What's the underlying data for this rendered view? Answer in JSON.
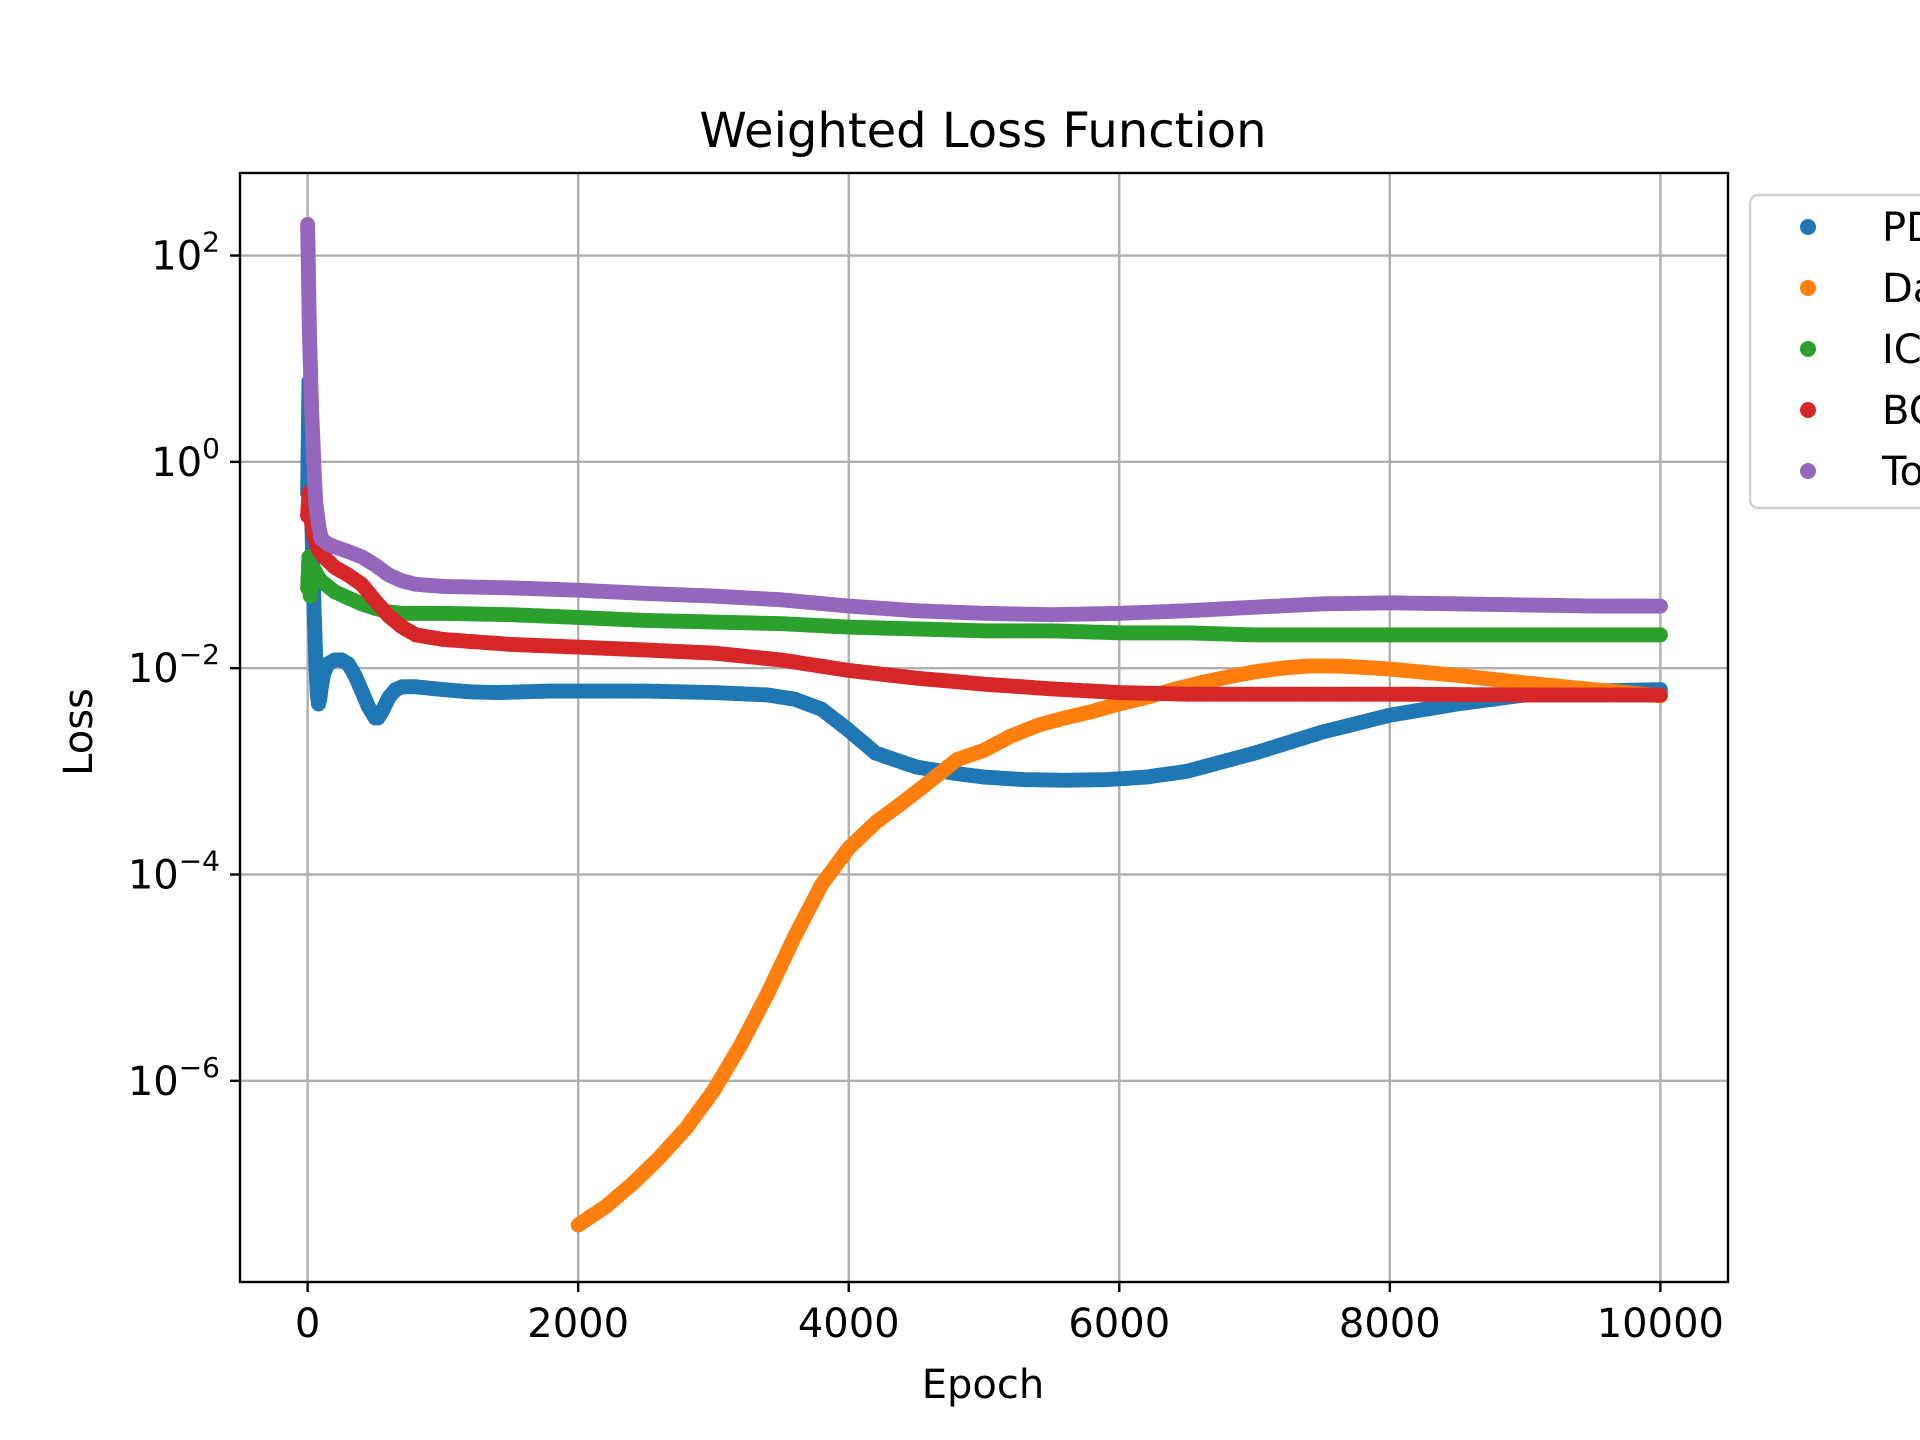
{
  "chart_data": {
    "type": "scatter",
    "title": "Weighted Loss Function",
    "xlabel": "Epoch",
    "ylabel": "Loss",
    "yscale": "log",
    "xlim": [
      -500,
      10500
    ],
    "ylim_log10": [
      -7.95,
      2.8
    ],
    "grid": true,
    "legend_placement": "outside-top-right",
    "xticks": [
      0,
      2000,
      4000,
      6000,
      8000,
      10000
    ],
    "xtick_labels": [
      "0",
      "2000",
      "4000",
      "6000",
      "8000",
      "10000"
    ],
    "yticks_log10": [
      2,
      0,
      -2,
      -4,
      -6
    ],
    "ytick_labels": [
      {
        "base": "10",
        "exp": "2"
      },
      {
        "base": "10",
        "exp": "0"
      },
      {
        "base": "10",
        "exp": "−2"
      },
      {
        "base": "10",
        "exp": "−4"
      },
      {
        "base": "10",
        "exp": "−6"
      }
    ],
    "series": [
      {
        "name": "PD",
        "color": "#1f77b4",
        "x": [
          0,
          10,
          20,
          30,
          40,
          50,
          60,
          70,
          80,
          90,
          100,
          120,
          150,
          200,
          250,
          300,
          350,
          400,
          450,
          500,
          520,
          550,
          600,
          650,
          700,
          800,
          1000,
          1200,
          1400,
          1600,
          1800,
          2000,
          2500,
          3000,
          3400,
          3600,
          3800,
          4000,
          4200,
          4500,
          4800,
          5000,
          5300,
          5600,
          5900,
          6200,
          6500,
          7000,
          7500,
          8000,
          8500,
          9000,
          9500,
          10000
        ],
        "y": [
          0.5,
          6.0,
          1.0,
          0.3,
          0.08,
          0.03,
          0.012,
          0.006,
          0.0045,
          0.005,
          0.0065,
          0.009,
          0.011,
          0.012,
          0.012,
          0.011,
          0.0085,
          0.006,
          0.0042,
          0.0033,
          0.0033,
          0.0038,
          0.0052,
          0.0062,
          0.0066,
          0.0066,
          0.0062,
          0.0059,
          0.0058,
          0.0059,
          0.006,
          0.006,
          0.006,
          0.0058,
          0.0055,
          0.005,
          0.004,
          0.0025,
          0.0015,
          0.0011,
          0.00095,
          0.00088,
          0.00083,
          0.00082,
          0.00083,
          0.00088,
          0.001,
          0.0015,
          0.0024,
          0.0035,
          0.0045,
          0.0055,
          0.006,
          0.0062
        ]
      },
      {
        "name": "Da",
        "color": "#ff7f0e",
        "x": [
          2000,
          2200,
          2400,
          2600,
          2800,
          3000,
          3200,
          3400,
          3600,
          3800,
          4000,
          4200,
          4400,
          4600,
          4800,
          5000,
          5200,
          5400,
          5600,
          5800,
          6000,
          6200,
          6400,
          6600,
          6800,
          7000,
          7200,
          7400,
          7600,
          7800,
          8000,
          8500,
          9000,
          9500,
          10000
        ],
        "y": [
          4e-08,
          6e-08,
          1e-07,
          1.8e-07,
          3.5e-07,
          8e-07,
          2.2e-06,
          7e-06,
          2.5e-05,
          8e-05,
          0.00018,
          0.00032,
          0.0005,
          0.0008,
          0.0013,
          0.0016,
          0.0022,
          0.0028,
          0.0033,
          0.0038,
          0.0045,
          0.0052,
          0.0062,
          0.0072,
          0.0082,
          0.0092,
          0.01,
          0.0105,
          0.0105,
          0.0102,
          0.0098,
          0.0085,
          0.0072,
          0.0062,
          0.0054
        ]
      },
      {
        "name": "IC",
        "color": "#2ca02c",
        "x": [
          0,
          10,
          20,
          30,
          50,
          70,
          100,
          150,
          200,
          300,
          400,
          500,
          600,
          700,
          800,
          1000,
          1500,
          2000,
          2500,
          3000,
          3500,
          4000,
          4500,
          5000,
          5500,
          6000,
          6500,
          7000,
          8000,
          9000,
          10000
        ],
        "y": [
          0.06,
          0.12,
          0.05,
          0.07,
          0.09,
          0.08,
          0.07,
          0.062,
          0.055,
          0.048,
          0.042,
          0.038,
          0.035,
          0.034,
          0.034,
          0.034,
          0.033,
          0.031,
          0.029,
          0.028,
          0.027,
          0.025,
          0.024,
          0.023,
          0.023,
          0.022,
          0.022,
          0.021,
          0.021,
          0.021,
          0.021
        ]
      },
      {
        "name": "BC",
        "color": "#d62728",
        "x": [
          0,
          10,
          20,
          30,
          50,
          80,
          100,
          150,
          200,
          300,
          400,
          500,
          600,
          700,
          800,
          1000,
          1500,
          2000,
          2500,
          3000,
          3500,
          4000,
          4500,
          5000,
          5500,
          6000,
          6500,
          7000,
          8000,
          9000,
          10000
        ],
        "y": [
          0.3,
          0.5,
          0.35,
          0.25,
          0.18,
          0.14,
          0.13,
          0.11,
          0.095,
          0.08,
          0.065,
          0.045,
          0.032,
          0.025,
          0.021,
          0.019,
          0.017,
          0.016,
          0.015,
          0.014,
          0.012,
          0.0095,
          0.008,
          0.007,
          0.0063,
          0.0058,
          0.0056,
          0.0056,
          0.0056,
          0.0055,
          0.0055
        ]
      },
      {
        "name": "To",
        "color": "#9467bd",
        "x": [
          0,
          5,
          10,
          15,
          20,
          25,
          30,
          40,
          50,
          60,
          80,
          100,
          150,
          200,
          300,
          400,
          500,
          600,
          700,
          800,
          1000,
          1500,
          2000,
          2500,
          3000,
          3500,
          4000,
          4500,
          5000,
          5500,
          6000,
          6500,
          7000,
          7500,
          8000,
          8500,
          9000,
          9500,
          10000
        ],
        "y": [
          200,
          80,
          30,
          14,
          9,
          5,
          3,
          1.5,
          0.7,
          0.4,
          0.25,
          0.18,
          0.16,
          0.15,
          0.135,
          0.12,
          0.1,
          0.08,
          0.07,
          0.065,
          0.062,
          0.06,
          0.057,
          0.053,
          0.05,
          0.046,
          0.04,
          0.036,
          0.034,
          0.033,
          0.034,
          0.036,
          0.039,
          0.042,
          0.043,
          0.042,
          0.041,
          0.04,
          0.04
        ]
      }
    ]
  }
}
